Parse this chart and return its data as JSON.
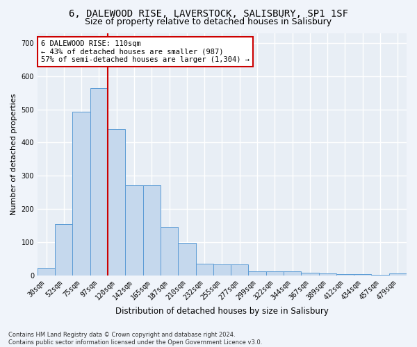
{
  "title": "6, DALEWOOD RISE, LAVERSTOCK, SALISBURY, SP1 1SF",
  "subtitle": "Size of property relative to detached houses in Salisbury",
  "xlabel": "Distribution of detached houses by size in Salisbury",
  "ylabel": "Number of detached properties",
  "footer": "Contains HM Land Registry data © Crown copyright and database right 2024.\nContains public sector information licensed under the Open Government Licence v3.0.",
  "categories": [
    "30sqm",
    "52sqm",
    "75sqm",
    "97sqm",
    "120sqm",
    "142sqm",
    "165sqm",
    "187sqm",
    "210sqm",
    "232sqm",
    "255sqm",
    "277sqm",
    "299sqm",
    "322sqm",
    "344sqm",
    "367sqm",
    "389sqm",
    "412sqm",
    "434sqm",
    "457sqm",
    "479sqm"
  ],
  "values": [
    22,
    155,
    492,
    563,
    440,
    272,
    272,
    145,
    97,
    35,
    32,
    32,
    13,
    12,
    12,
    9,
    5,
    4,
    4,
    1,
    5
  ],
  "bar_color": "#c5d8ed",
  "bar_edge_color": "#5b9bd5",
  "vline_x": 3.5,
  "annotation_title": "6 DALEWOOD RISE: 110sqm",
  "annotation_line1": "← 43% of detached houses are smaller (987)",
  "annotation_line2": "57% of semi-detached houses are larger (1,304) →",
  "annotation_box_color": "#ffffff",
  "annotation_box_edge": "#cc0000",
  "vline_color": "#cc0000",
  "ylim": [
    0,
    730
  ],
  "yticks": [
    0,
    100,
    200,
    300,
    400,
    500,
    600,
    700
  ],
  "background_color": "#e8eef5",
  "grid_color": "#ffffff",
  "title_fontsize": 10,
  "subtitle_fontsize": 9,
  "ylabel_fontsize": 8,
  "xlabel_fontsize": 8.5,
  "tick_fontsize": 7,
  "footer_fontsize": 6
}
